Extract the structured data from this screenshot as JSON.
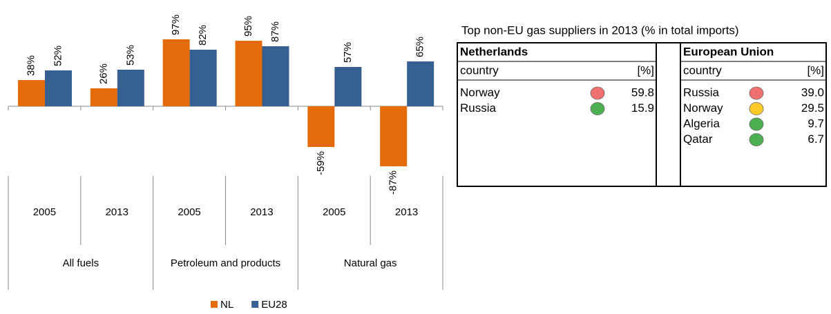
{
  "chart_data": {
    "type": "bar",
    "categories": [
      "2005",
      "2013",
      "2005",
      "2013",
      "2005",
      "2013"
    ],
    "groups": [
      "All fuels",
      "Petroleum and products",
      "Natural gas"
    ],
    "series": [
      {
        "name": "NL",
        "color": "#e46c0a",
        "values": [
          38,
          26,
          97,
          95,
          -59,
          -87
        ],
        "value_labels": [
          "38%",
          "26%",
          "97%",
          "95%",
          "-59%",
          "-87%"
        ]
      },
      {
        "name": "EU28",
        "color": "#376092",
        "values": [
          52,
          53,
          82,
          87,
          57,
          65
        ],
        "value_labels": [
          "52%",
          "53%",
          "82%",
          "87%",
          "57%",
          "65%"
        ]
      }
    ],
    "ylim": [
      -100,
      100
    ],
    "legend": "bottom"
  },
  "table": {
    "title": "Top non-EU gas suppliers in 2013 (% in total imports)",
    "blocks": [
      {
        "name": "Netherlands",
        "header": [
          "country",
          "[%]"
        ],
        "rows": [
          {
            "country": "Norway",
            "color": "#f07070",
            "value": "59.8"
          },
          {
            "country": "Russia",
            "color": "#4caf50",
            "value": "15.9"
          }
        ]
      },
      {
        "name": "European Union",
        "header": [
          "country",
          "[%]"
        ],
        "rows": [
          {
            "country": "Russia",
            "color": "#f07070",
            "value": "39.0"
          },
          {
            "country": "Norway",
            "color": "#ffc928",
            "value": "29.5"
          },
          {
            "country": "Algeria",
            "color": "#4caf50",
            "value": "9.7"
          },
          {
            "country": "Qatar",
            "color": "#4caf50",
            "value": "6.7"
          }
        ]
      }
    ]
  }
}
